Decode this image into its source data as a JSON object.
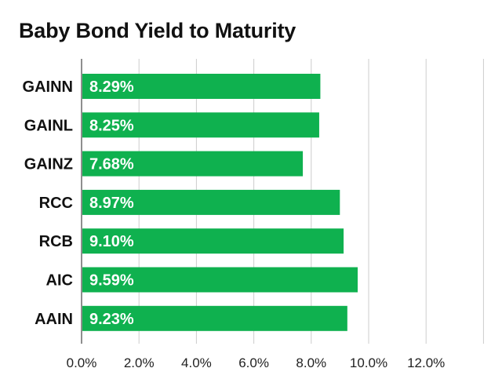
{
  "chart_data": {
    "type": "bar",
    "orientation": "horizontal",
    "title": "Baby Bond Yield to Maturity",
    "xlabel": "",
    "ylabel": "",
    "categories": [
      "GAINN",
      "GAINL",
      "GAINZ",
      "RCC",
      "RCB",
      "AIC",
      "AAIN"
    ],
    "values": [
      8.29,
      8.25,
      7.68,
      8.97,
      9.1,
      9.59,
      9.23
    ],
    "value_labels": [
      "8.29%",
      "8.25%",
      "7.68%",
      "8.97%",
      "9.10%",
      "9.59%",
      "9.23%"
    ],
    "xlim": [
      0,
      14
    ],
    "x_ticks": [
      0,
      2,
      4,
      6,
      8,
      10,
      12
    ],
    "x_tick_labels": [
      "0.0%",
      "2.0%",
      "4.0%",
      "6.0%",
      "8.0%",
      "10.0%",
      "12.0%"
    ],
    "grid": true,
    "legend": "none",
    "bar_color": "#0fb14f",
    "grid_color": "#cccccc"
  }
}
